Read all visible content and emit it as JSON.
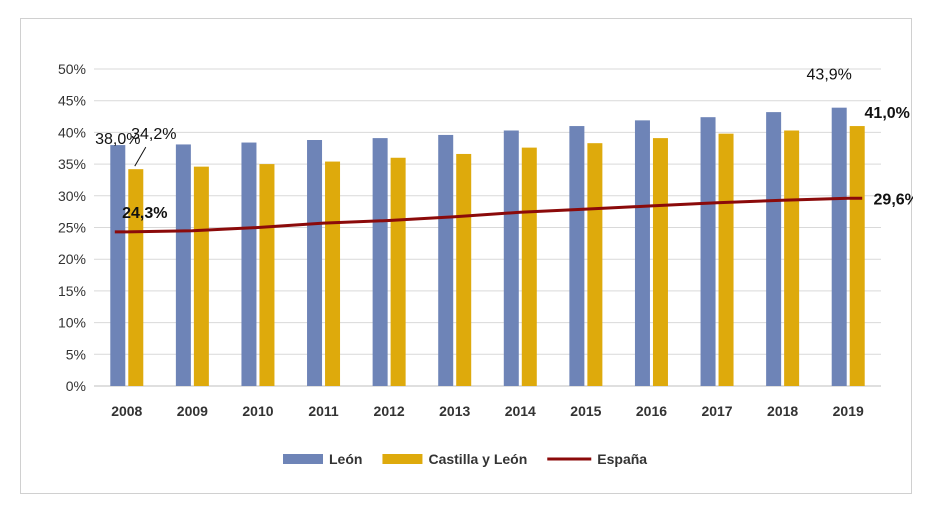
{
  "chart_data": {
    "type": "bar",
    "categories": [
      "2008",
      "2009",
      "2010",
      "2011",
      "2012",
      "2013",
      "2014",
      "2015",
      "2016",
      "2017",
      "2018",
      "2019"
    ],
    "ylim": [
      0,
      50
    ],
    "ytick_labels": [
      "0%",
      "5%",
      "10%",
      "15%",
      "20%",
      "25%",
      "30%",
      "35%",
      "40%",
      "45%",
      "50%"
    ],
    "grid": true,
    "legend_position": "bottom",
    "series": [
      {
        "name": "León",
        "kind": "bar",
        "color": "#6e84b7",
        "values": [
          38.0,
          38.1,
          38.4,
          38.8,
          39.1,
          39.6,
          40.3,
          41.0,
          41.9,
          42.4,
          43.2,
          43.9
        ]
      },
      {
        "name": "Castilla y León",
        "kind": "bar",
        "color": "#deaa0c",
        "values": [
          34.2,
          34.6,
          35.0,
          35.4,
          36.0,
          36.6,
          37.6,
          38.3,
          39.1,
          39.8,
          40.3,
          41.0
        ]
      },
      {
        "name": "España",
        "kind": "line",
        "color": "#8b0a0a",
        "values": [
          24.3,
          24.5,
          25.0,
          25.7,
          26.1,
          26.7,
          27.4,
          27.9,
          28.4,
          28.9,
          29.3,
          29.6
        ]
      }
    ],
    "data_labels": [
      {
        "text": "38,0%",
        "series": 0,
        "index": 0
      },
      {
        "text": "34,2%",
        "series": 1,
        "index": 0
      },
      {
        "text": "24,3%",
        "series": 2,
        "index": 0
      },
      {
        "text": "43,9%",
        "series": 0,
        "index": 11
      },
      {
        "text": "41,0%",
        "series": 1,
        "index": 11
      },
      {
        "text": "29,6%",
        "series": 2,
        "index": 11
      }
    ]
  }
}
